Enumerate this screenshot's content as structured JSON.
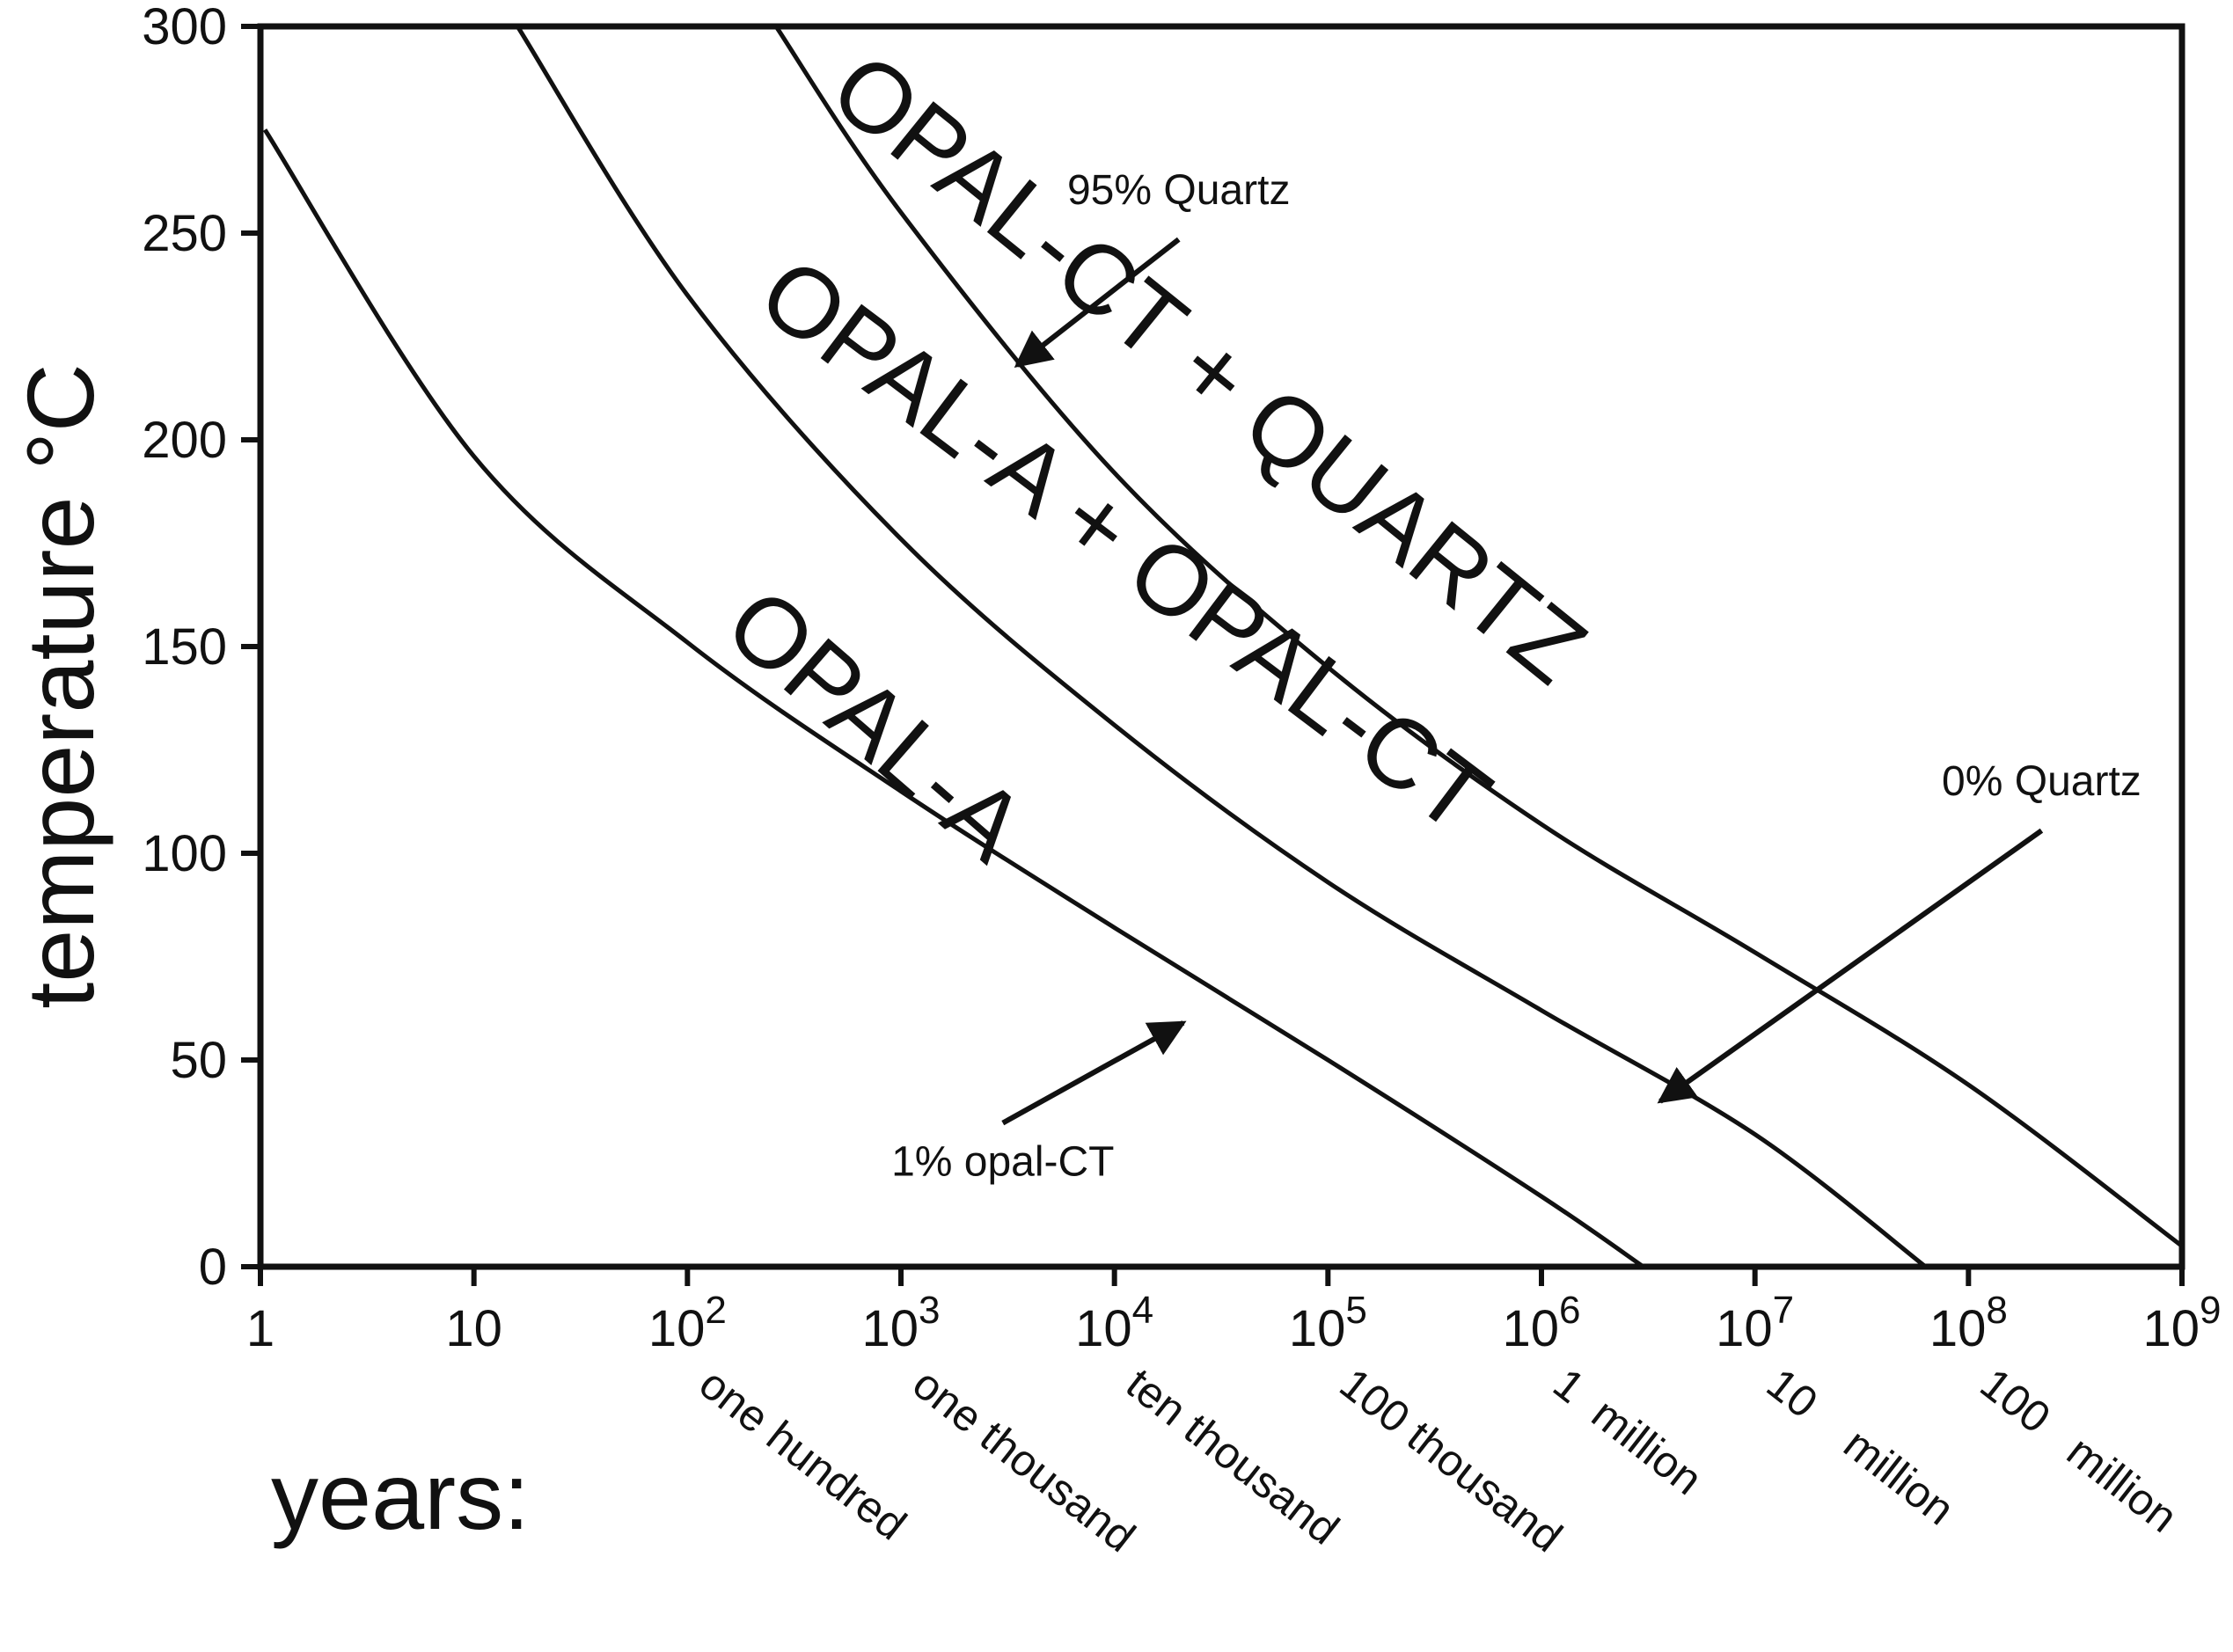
{
  "chart_data": {
    "type": "line",
    "xscale": "log",
    "xlim": [
      1,
      1000000000
    ],
    "ylim": [
      0,
      300
    ],
    "ylabel": "temperature °C",
    "xlabel": "years:",
    "grid": false,
    "x_ticks": [
      {
        "value": 1,
        "label": "1"
      },
      {
        "value": 10,
        "label": "10"
      },
      {
        "value": 100,
        "base": "10",
        "exp": "2"
      },
      {
        "value": 1000,
        "base": "10",
        "exp": "3"
      },
      {
        "value": 10000,
        "base": "10",
        "exp": "4"
      },
      {
        "value": 100000,
        "base": "10",
        "exp": "5"
      },
      {
        "value": 1000000,
        "base": "10",
        "exp": "6"
      },
      {
        "value": 10000000,
        "base": "10",
        "exp": "7"
      },
      {
        "value": 100000000,
        "base": "10",
        "exp": "8"
      },
      {
        "value": 1000000000,
        "base": "10",
        "exp": "9"
      }
    ],
    "x_word_labels": [
      {
        "value": 100,
        "label": "one hundred"
      },
      {
        "value": 1000,
        "label": "one thousand"
      },
      {
        "value": 10000,
        "label": "ten thousand"
      },
      {
        "value": 100000,
        "label": "100 thousand"
      },
      {
        "value": 1000000,
        "label": "1  million"
      },
      {
        "value": 10000000,
        "label": "10    million"
      },
      {
        "value": 100000000,
        "label": "100   million"
      }
    ],
    "y_ticks": [
      0,
      50,
      100,
      150,
      200,
      250,
      300
    ],
    "series": [
      {
        "name": "1% opal-CT",
        "x": [
          1.05,
          10,
          100,
          1000,
          10000,
          100000,
          1000000,
          3000000
        ],
        "y": [
          275,
          196,
          151,
          115,
          82,
          50,
          17,
          0
        ]
      },
      {
        "name": "0% Quartz",
        "x": [
          16,
          100,
          1000,
          10000,
          100000,
          1000000,
          10000000,
          63000000
        ],
        "y": [
          300,
          235,
          176,
          131,
          93,
          62,
          32,
          0
        ]
      },
      {
        "name": "95% Quartz",
        "x": [
          260,
          1000,
          10000,
          100000,
          1000000,
          10000000,
          100000000,
          1000000000
        ],
        "y": [
          300,
          255,
          192,
          145,
          107,
          76,
          44,
          5
        ]
      }
    ],
    "annotations": [
      {
        "text": "95% Quartz",
        "point": [
          3500,
          218
        ],
        "label_at": [
          20000,
          257
        ]
      },
      {
        "text": "0% Quartz",
        "point": [
          3600000,
          40
        ],
        "label_at": [
          220000000,
          114
        ]
      },
      {
        "text": "1% opal-CT",
        "point": [
          21000,
          59
        ],
        "label_at": [
          3000,
          22
        ]
      }
    ],
    "regions": [
      {
        "text": "OPAL-A",
        "at": [
          600,
          125
        ],
        "angle": 41
      },
      {
        "text": "OPAL-A + OPAL-CT",
        "at": [
          9000,
          168
        ],
        "angle": 37
      },
      {
        "text": "OPAL-CT + QUARTZ",
        "at": [
          22000,
          211
        ],
        "angle": 39
      }
    ]
  }
}
